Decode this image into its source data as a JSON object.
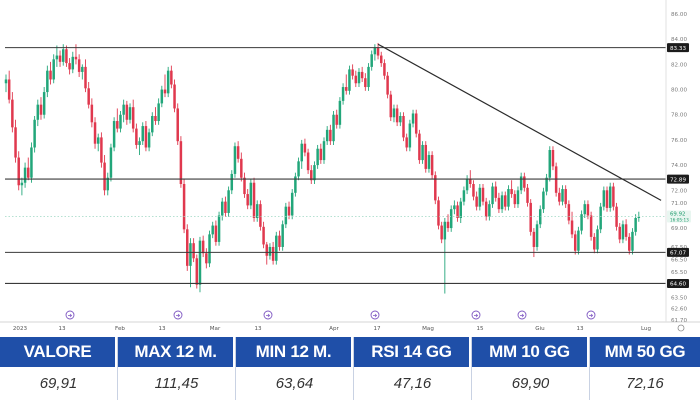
{
  "chart_data": {
    "type": "candlestick",
    "x_tick_labels": [
      "2023",
      "13",
      "Feb",
      "13",
      "Mar",
      "13",
      "Apr",
      "17",
      "Mag",
      "15",
      "Giu",
      "13",
      "Lug"
    ],
    "y_ticks": [
      86.0,
      84.0,
      82.0,
      80.0,
      78.0,
      76.0,
      74.0,
      72.0,
      71.0,
      69.0,
      67.5,
      66.5,
      65.5,
      63.5,
      62.6,
      61.7
    ],
    "y_tick_labels": [
      "86.00",
      "84.00",
      "82.00",
      "80.00",
      "78.00",
      "76.00",
      "74.00",
      "72.00",
      "71.00",
      "69.00",
      "67.50",
      "66.50",
      "65.50",
      "63.50",
      "62.60",
      "61.70"
    ],
    "ylim": [
      61.0,
      86.8
    ],
    "highlighted_levels": [
      {
        "label": "83.33",
        "value": 83.33
      },
      {
        "label": "72.89",
        "value": 72.89
      },
      {
        "label": "67.07",
        "value": 67.07
      },
      {
        "label": "64.60",
        "value": 64.6
      }
    ],
    "last_price": {
      "label": "69.92",
      "sublabel": "16:05:13",
      "value": 69.92
    },
    "up_color": "#22a67a",
    "down_color": "#e0384e",
    "trendline": {
      "from": {
        "bar": 117,
        "value": 83.6
      },
      "to": {
        "bar": 206,
        "value": 71.2
      }
    },
    "candles_ohlc": [
      [
        80.5,
        81.2,
        79.8,
        80.8
      ],
      [
        80.8,
        81.5,
        78.9,
        79.2
      ],
      [
        79.2,
        79.8,
        76.6,
        77.0
      ],
      [
        77.0,
        77.6,
        74.2,
        74.6
      ],
      [
        74.6,
        75.1,
        72.0,
        72.4
      ],
      [
        72.4,
        73.0,
        71.6,
        72.6
      ],
      [
        72.6,
        74.2,
        72.2,
        73.8
      ],
      [
        73.8,
        74.6,
        72.8,
        73.0
      ],
      [
        73.0,
        75.8,
        72.6,
        75.4
      ],
      [
        75.4,
        77.9,
        75.0,
        77.6
      ],
      [
        77.6,
        79.2,
        77.1,
        78.8
      ],
      [
        78.8,
        79.4,
        77.6,
        78.0
      ],
      [
        78.0,
        80.2,
        77.7,
        79.8
      ],
      [
        79.8,
        81.9,
        79.4,
        81.5
      ],
      [
        81.5,
        82.2,
        80.4,
        80.8
      ],
      [
        80.8,
        82.8,
        80.5,
        82.4
      ],
      [
        82.4,
        83.5,
        81.8,
        82.7
      ],
      [
        82.7,
        83.1,
        81.8,
        82.2
      ],
      [
        82.2,
        83.6,
        81.9,
        83.2
      ],
      [
        83.2,
        83.5,
        81.8,
        82.1
      ],
      [
        82.1,
        82.5,
        81.2,
        81.6
      ],
      [
        81.6,
        83.0,
        81.3,
        82.6
      ],
      [
        82.6,
        83.6,
        82.0,
        82.4
      ],
      [
        82.4,
        82.8,
        81.0,
        81.4
      ],
      [
        81.4,
        82.0,
        80.8,
        81.8
      ],
      [
        81.8,
        82.4,
        79.8,
        80.1
      ],
      [
        80.1,
        80.6,
        78.5,
        78.8
      ],
      [
        78.8,
        79.3,
        77.0,
        77.4
      ],
      [
        77.4,
        77.8,
        75.3,
        75.7
      ],
      [
        75.7,
        76.5,
        75.1,
        76.2
      ],
      [
        76.2,
        76.6,
        73.8,
        74.2
      ],
      [
        74.2,
        74.8,
        71.6,
        72.0
      ],
      [
        72.0,
        73.4,
        71.6,
        73.0
      ],
      [
        73.0,
        75.7,
        72.7,
        75.4
      ],
      [
        75.4,
        77.8,
        75.1,
        77.5
      ],
      [
        77.5,
        78.5,
        76.6,
        76.9
      ],
      [
        76.9,
        78.3,
        76.6,
        78.0
      ],
      [
        78.0,
        79.2,
        77.4,
        78.8
      ],
      [
        78.8,
        79.1,
        77.2,
        77.6
      ],
      [
        77.6,
        78.9,
        77.3,
        78.6
      ],
      [
        78.6,
        79.2,
        76.6,
        76.9
      ],
      [
        76.9,
        77.3,
        75.3,
        75.6
      ],
      [
        75.6,
        76.2,
        74.8,
        75.9
      ],
      [
        75.9,
        77.4,
        75.6,
        77.1
      ],
      [
        77.1,
        77.5,
        75.1,
        75.4
      ],
      [
        75.4,
        76.9,
        75.1,
        76.6
      ],
      [
        76.6,
        78.2,
        76.3,
        77.9
      ],
      [
        77.9,
        78.6,
        77.2,
        77.5
      ],
      [
        77.5,
        79.3,
        77.2,
        78.9
      ],
      [
        78.9,
        80.3,
        78.6,
        80.0
      ],
      [
        80.0,
        81.2,
        79.4,
        79.7
      ],
      [
        79.7,
        81.8,
        79.4,
        81.5
      ],
      [
        81.5,
        81.9,
        80.1,
        80.4
      ],
      [
        80.4,
        80.8,
        78.2,
        78.5
      ],
      [
        78.5,
        78.9,
        75.6,
        75.9
      ],
      [
        75.9,
        76.3,
        72.2,
        72.5
      ],
      [
        72.5,
        72.9,
        68.6,
        68.9
      ],
      [
        68.9,
        69.3,
        65.6,
        66.0
      ],
      [
        66.0,
        68.2,
        64.3,
        67.8
      ],
      [
        67.8,
        68.2,
        66.3,
        66.6
      ],
      [
        66.6,
        66.9,
        64.2,
        64.5
      ],
      [
        64.5,
        68.3,
        63.9,
        68.0
      ],
      [
        68.0,
        68.4,
        66.7,
        67.0
      ],
      [
        67.0,
        67.4,
        65.8,
        66.2
      ],
      [
        66.2,
        68.8,
        65.9,
        68.5
      ],
      [
        68.5,
        69.5,
        68.2,
        69.2
      ],
      [
        69.2,
        69.6,
        67.6,
        67.9
      ],
      [
        67.9,
        70.3,
        67.6,
        70.0
      ],
      [
        70.0,
        71.4,
        69.6,
        71.1
      ],
      [
        71.1,
        71.5,
        69.9,
        70.2
      ],
      [
        70.2,
        72.3,
        69.9,
        72.0
      ],
      [
        72.0,
        73.6,
        71.7,
        73.3
      ],
      [
        73.3,
        75.8,
        73.0,
        75.5
      ],
      [
        75.5,
        75.9,
        74.2,
        74.5
      ],
      [
        74.5,
        75.0,
        72.7,
        73.0
      ],
      [
        73.0,
        73.4,
        71.4,
        71.7
      ],
      [
        71.7,
        72.1,
        70.5,
        70.8
      ],
      [
        70.8,
        72.9,
        70.5,
        72.6
      ],
      [
        72.6,
        73.0,
        69.5,
        69.8
      ],
      [
        69.8,
        71.2,
        69.5,
        70.9
      ],
      [
        70.9,
        71.2,
        68.8,
        69.1
      ],
      [
        69.1,
        69.5,
        67.4,
        67.7
      ],
      [
        67.7,
        67.9,
        66.1,
        66.8
      ],
      [
        66.8,
        67.8,
        66.5,
        67.5
      ],
      [
        67.5,
        67.9,
        66.1,
        66.4
      ],
      [
        66.4,
        68.7,
        66.1,
        68.4
      ],
      [
        68.4,
        68.8,
        67.2,
        67.5
      ],
      [
        67.5,
        69.6,
        67.2,
        69.3
      ],
      [
        69.3,
        71.0,
        69.0,
        70.7
      ],
      [
        70.7,
        71.1,
        69.7,
        70.0
      ],
      [
        70.0,
        72.1,
        69.7,
        71.8
      ],
      [
        71.8,
        73.4,
        71.5,
        73.1
      ],
      [
        73.1,
        74.6,
        72.8,
        74.3
      ],
      [
        74.3,
        76.0,
        73.7,
        75.7
      ],
      [
        75.7,
        76.1,
        74.7,
        75.0
      ],
      [
        75.0,
        75.3,
        73.3,
        73.6
      ],
      [
        73.6,
        74.0,
        72.5,
        72.8
      ],
      [
        72.8,
        74.3,
        72.5,
        74.0
      ],
      [
        74.0,
        75.6,
        73.7,
        75.3
      ],
      [
        75.3,
        75.7,
        74.1,
        74.4
      ],
      [
        74.4,
        76.2,
        74.1,
        75.9
      ],
      [
        75.9,
        77.1,
        75.6,
        76.8
      ],
      [
        76.8,
        77.2,
        75.6,
        75.9
      ],
      [
        75.9,
        78.3,
        75.6,
        78.0
      ],
      [
        78.0,
        78.4,
        76.9,
        77.2
      ],
      [
        77.2,
        79.4,
        76.9,
        79.1
      ],
      [
        79.1,
        80.5,
        78.8,
        80.2
      ],
      [
        80.2,
        81.2,
        79.6,
        79.9
      ],
      [
        79.9,
        81.9,
        79.6,
        81.6
      ],
      [
        81.6,
        82.0,
        80.8,
        81.1
      ],
      [
        81.1,
        81.5,
        80.2,
        80.5
      ],
      [
        80.5,
        81.7,
        80.2,
        81.4
      ],
      [
        81.4,
        81.8,
        80.6,
        80.9
      ],
      [
        80.9,
        81.3,
        79.9,
        80.2
      ],
      [
        80.2,
        82.1,
        79.9,
        81.8
      ],
      [
        81.8,
        83.1,
        81.5,
        82.8
      ],
      [
        82.8,
        83.6,
        82.3,
        83.3
      ],
      [
        83.3,
        83.7,
        82.4,
        82.7
      ],
      [
        82.7,
        83.0,
        81.8,
        82.1
      ],
      [
        82.1,
        82.4,
        80.8,
        81.1
      ],
      [
        81.1,
        81.4,
        79.3,
        79.6
      ],
      [
        79.6,
        79.9,
        77.5,
        77.8
      ],
      [
        77.8,
        78.8,
        77.4,
        78.5
      ],
      [
        78.5,
        78.8,
        77.1,
        77.4
      ],
      [
        77.4,
        78.2,
        77.1,
        77.9
      ],
      [
        77.9,
        78.2,
        75.9,
        76.2
      ],
      [
        76.2,
        76.5,
        75.1,
        75.4
      ],
      [
        75.4,
        77.6,
        75.1,
        77.3
      ],
      [
        77.3,
        78.4,
        77.0,
        78.1
      ],
      [
        78.1,
        78.4,
        76.2,
        76.5
      ],
      [
        76.5,
        76.8,
        74.1,
        74.4
      ],
      [
        74.4,
        75.9,
        74.1,
        75.6
      ],
      [
        75.6,
        75.9,
        73.4,
        73.7
      ],
      [
        73.7,
        75.1,
        73.4,
        74.8
      ],
      [
        74.8,
        75.1,
        72.9,
        73.2
      ],
      [
        73.2,
        73.5,
        70.9,
        71.2
      ],
      [
        71.2,
        71.5,
        68.9,
        69.2
      ],
      [
        69.2,
        69.5,
        67.8,
        68.1
      ],
      [
        68.1,
        69.8,
        63.8,
        69.5
      ],
      [
        69.5,
        70.1,
        68.7,
        69.0
      ],
      [
        69.0,
        70.8,
        68.7,
        70.5
      ],
      [
        70.5,
        71.2,
        70.1,
        70.8
      ],
      [
        70.8,
        71.1,
        69.5,
        69.8
      ],
      [
        69.8,
        71.4,
        69.4,
        71.1
      ],
      [
        71.1,
        72.3,
        70.8,
        72.0
      ],
      [
        72.0,
        73.2,
        71.7,
        72.9
      ],
      [
        72.9,
        73.6,
        72.2,
        72.5
      ],
      [
        72.5,
        72.8,
        71.2,
        71.5
      ],
      [
        71.5,
        71.9,
        70.4,
        70.7
      ],
      [
        70.7,
        72.5,
        70.4,
        72.2
      ],
      [
        72.2,
        72.5,
        70.8,
        71.1
      ],
      [
        71.1,
        71.4,
        69.6,
        69.9
      ],
      [
        69.9,
        71.2,
        69.6,
        70.9
      ],
      [
        70.9,
        72.6,
        70.6,
        72.3
      ],
      [
        72.3,
        72.7,
        71.1,
        71.4
      ],
      [
        71.4,
        71.8,
        70.2,
        70.5
      ],
      [
        70.5,
        71.9,
        70.2,
        71.6
      ],
      [
        71.6,
        71.9,
        70.4,
        70.7
      ],
      [
        70.7,
        72.4,
        70.4,
        72.1
      ],
      [
        72.1,
        72.8,
        71.4,
        71.7
      ],
      [
        71.7,
        72.0,
        70.6,
        70.9
      ],
      [
        70.9,
        72.3,
        70.6,
        72.0
      ],
      [
        72.0,
        73.4,
        71.7,
        73.1
      ],
      [
        73.1,
        73.4,
        71.9,
        72.2
      ],
      [
        72.2,
        72.5,
        70.7,
        71.0
      ],
      [
        71.0,
        71.3,
        68.4,
        68.7
      ],
      [
        68.7,
        69.0,
        66.7,
        67.5
      ],
      [
        67.5,
        69.6,
        67.2,
        69.3
      ],
      [
        69.3,
        70.8,
        69.0,
        70.5
      ],
      [
        70.5,
        72.2,
        70.2,
        71.9
      ],
      [
        71.9,
        73.3,
        71.6,
        73.0
      ],
      [
        73.0,
        75.5,
        72.7,
        75.2
      ],
      [
        75.2,
        75.5,
        73.6,
        73.9
      ],
      [
        73.9,
        74.2,
        71.5,
        71.8
      ],
      [
        71.8,
        72.2,
        70.8,
        71.1
      ],
      [
        71.1,
        72.4,
        70.8,
        72.1
      ],
      [
        72.1,
        72.4,
        70.6,
        70.9
      ],
      [
        70.9,
        71.2,
        69.3,
        69.6
      ],
      [
        69.6,
        70.3,
        68.2,
        68.5
      ],
      [
        68.5,
        68.8,
        66.9,
        67.2
      ],
      [
        67.2,
        69.1,
        66.9,
        68.8
      ],
      [
        68.8,
        70.4,
        68.5,
        70.1
      ],
      [
        70.1,
        71.2,
        69.8,
        70.9
      ],
      [
        70.9,
        71.2,
        69.7,
        70.0
      ],
      [
        70.0,
        70.3,
        68.0,
        68.3
      ],
      [
        68.3,
        68.6,
        67.0,
        67.3
      ],
      [
        67.3,
        69.2,
        67.0,
        68.9
      ],
      [
        68.9,
        71.0,
        68.6,
        70.7
      ],
      [
        70.7,
        72.3,
        70.4,
        72.0
      ],
      [
        72.0,
        72.3,
        70.3,
        70.6
      ],
      [
        70.6,
        72.6,
        70.3,
        72.3
      ],
      [
        72.3,
        72.6,
        70.4,
        70.7
      ],
      [
        70.7,
        71.0,
        68.8,
        69.1
      ],
      [
        69.1,
        69.4,
        67.8,
        68.1
      ],
      [
        68.1,
        69.6,
        67.8,
        69.3
      ],
      [
        69.3,
        69.7,
        68.0,
        68.3
      ],
      [
        68.3,
        68.6,
        66.9,
        67.2
      ],
      [
        67.2,
        69.0,
        66.9,
        68.7
      ],
      [
        68.7,
        70.1,
        68.4,
        69.8
      ],
      [
        69.8,
        70.3,
        69.5,
        69.9
      ]
    ]
  },
  "stats": [
    {
      "label": "VALORE",
      "value": "69,91"
    },
    {
      "label": "MAX 12 M.",
      "value": "111,45"
    },
    {
      "label": "MIN 12 M.",
      "value": "63,64"
    },
    {
      "label": "RSI 14 GG",
      "value": "47,16"
    },
    {
      "label": "MM 10 GG",
      "value": "69,90"
    },
    {
      "label": "MM 50 GG",
      "value": "72,16"
    }
  ]
}
